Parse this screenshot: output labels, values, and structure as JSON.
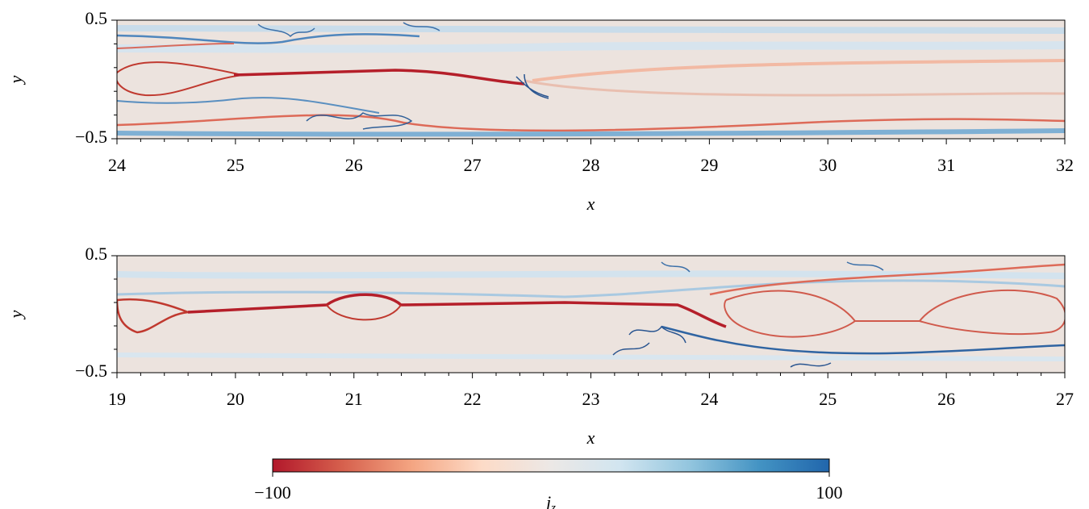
{
  "chart_data": [
    {
      "type": "heatmap",
      "xlabel": "x",
      "ylabel": "y",
      "xlim": [
        24,
        32
      ],
      "xticks": [
        24,
        25,
        26,
        27,
        28,
        29,
        30,
        31,
        32
      ],
      "ylim": [
        -0.5,
        0.5
      ],
      "yticks": [
        {
          "value": -0.5,
          "label": "−0.5"
        },
        0.5
      ]
    },
    {
      "type": "heatmap",
      "xlabel": "x",
      "ylabel": "y",
      "xlim": [
        19,
        27
      ],
      "xticks": [
        19,
        20,
        21,
        22,
        23,
        24,
        25,
        26,
        27
      ],
      "ylim": [
        -0.5,
        0.5
      ],
      "yticks": [
        {
          "value": -0.5,
          "label": "−0.5"
        },
        0.5
      ]
    }
  ],
  "colorbar": {
    "label": [
      "j",
      "z"
    ],
    "lim": [
      -100,
      100
    ],
    "ticks": [
      {
        "value": -100,
        "label": "−100"
      },
      100
    ],
    "colors": [
      "#b2182b",
      "#d6604d",
      "#f4a582",
      "#fddbc7",
      "#ece8e6",
      "#d1e5f0",
      "#92c5de",
      "#4393c3",
      "#2166ac"
    ]
  }
}
